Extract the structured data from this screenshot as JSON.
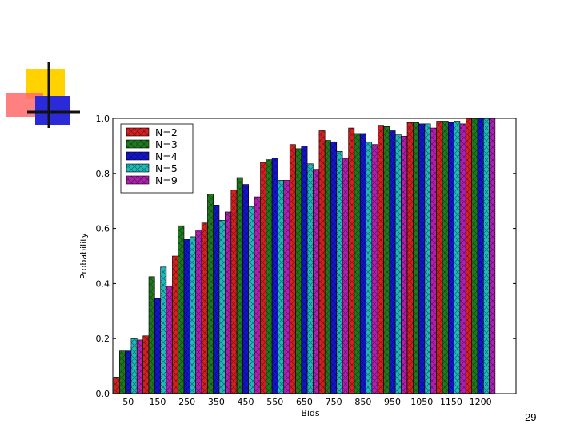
{
  "slide": {
    "page_number": "29"
  },
  "chart_data": {
    "type": "bar",
    "title": "",
    "xlabel": "Bids",
    "ylabel": "Probability",
    "ylim": [
      0,
      1.0
    ],
    "yticks": [
      "0.0",
      "0.2",
      "0.4",
      "0.6",
      "0.8",
      "1.0"
    ],
    "categories": [
      "50",
      "150",
      "250",
      "350",
      "450",
      "550",
      "650",
      "750",
      "850",
      "950",
      "1050",
      "1150",
      "1200"
    ],
    "legend_position": "top-left",
    "series": [
      {
        "name": "N=2",
        "color": "#d42020",
        "values": [
          0.06,
          0.21,
          0.5,
          0.62,
          0.74,
          0.84,
          0.905,
          0.955,
          0.965,
          0.975,
          0.985,
          0.99,
          1.0
        ]
      },
      {
        "name": "N=3",
        "color": "#1f7a1f",
        "values": [
          0.155,
          0.425,
          0.61,
          0.725,
          0.785,
          0.85,
          0.89,
          0.92,
          0.945,
          0.97,
          0.985,
          0.99,
          1.0
        ]
      },
      {
        "name": "N=4",
        "color": "#1414cc",
        "values": [
          0.155,
          0.345,
          0.56,
          0.685,
          0.76,
          0.855,
          0.9,
          0.915,
          0.945,
          0.955,
          0.98,
          0.985,
          1.0
        ]
      },
      {
        "name": "N=5",
        "color": "#20b8b8",
        "values": [
          0.2,
          0.46,
          0.57,
          0.63,
          0.68,
          0.775,
          0.835,
          0.88,
          0.915,
          0.94,
          0.98,
          0.99,
          1.0
        ]
      },
      {
        "name": "N=9",
        "color": "#b020b0",
        "values": [
          0.195,
          0.39,
          0.595,
          0.66,
          0.715,
          0.775,
          0.815,
          0.855,
          0.905,
          0.935,
          0.965,
          0.98,
          1.0
        ]
      }
    ]
  }
}
